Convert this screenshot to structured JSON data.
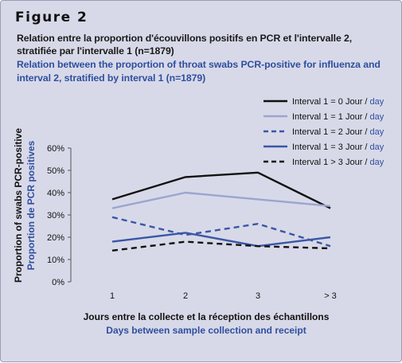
{
  "figure": {
    "heading": "Figure 2",
    "title_fr_line1": "Relation entre la proportion d'écouvillons positifs en PCR et l'intervalle 2,",
    "title_fr_line2": "stratifiée par l'intervalle 1 (n=1879)",
    "title_en_line1": "Relation between the proportion of throat swabs PCR-positive for influenza and",
    "title_en_line2": "interval 2, stratified by interval 1 (n=1879)"
  },
  "colors": {
    "background": "#d8d9e8",
    "text_fr": "#111111",
    "text_en": "#2e4fa0",
    "series_black": "#111111",
    "series_lightblue": "#9aa6d0",
    "series_blue": "#3a57a6"
  },
  "chart_data": {
    "type": "line",
    "categories": [
      "1",
      "2",
      "3",
      "> 3"
    ],
    "ylim": [
      0,
      60
    ],
    "yticks": [
      0,
      10,
      20,
      30,
      40,
      50,
      60
    ],
    "ytick_labels": [
      "0%",
      "10%",
      "20%",
      "30%",
      "40%",
      "50%",
      "60%"
    ],
    "grid": false,
    "legend_position": "top-right",
    "xlabel_fr": "Jours entre la collecte et la réception des échantillons",
    "xlabel_en": "Days between sample collection and receipt",
    "ylabel_en": "Proportion of swabs PCR-positive",
    "ylabel_fr": "Proportion de PCR positives",
    "series": [
      {
        "name_fr": "Interval 1 = 0 Jour /",
        "name_en": "day",
        "values": [
          37,
          47,
          49,
          33
        ],
        "color": "#111111",
        "dash": "solid"
      },
      {
        "name_fr": "Interval 1 = 1 Jour /",
        "name_en": "day",
        "values": [
          33,
          40,
          37,
          34
        ],
        "color": "#9aa6d0",
        "dash": "solid"
      },
      {
        "name_fr": "Interval 1 = 2 Jour /",
        "name_en": "day",
        "values": [
          29,
          21,
          26,
          16
        ],
        "color": "#3a57a6",
        "dash": "dashed"
      },
      {
        "name_fr": "Interval 1 = 3 Jour /",
        "name_en": "day",
        "values": [
          18,
          22,
          16,
          20
        ],
        "color": "#3a57a6",
        "dash": "solid"
      },
      {
        "name_fr": "Interval 1 > 3 Jour /",
        "name_en": "day",
        "values": [
          14,
          18,
          16,
          15
        ],
        "color": "#111111",
        "dash": "dashed"
      }
    ]
  }
}
